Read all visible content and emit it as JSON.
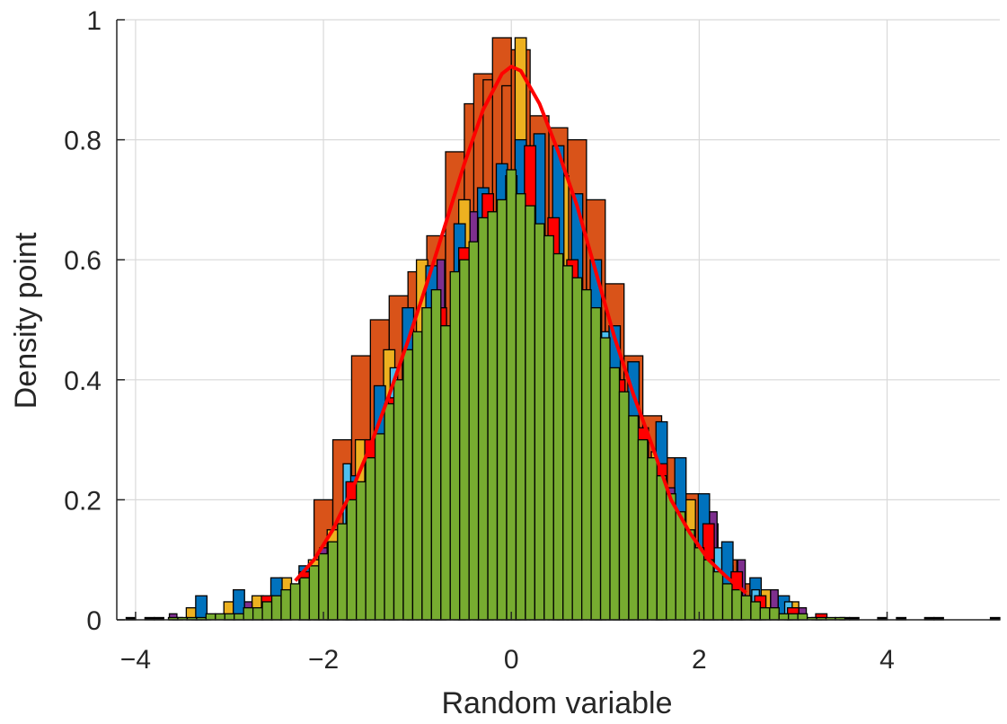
{
  "chart_data": {
    "type": "bar",
    "subtype": "overlaid-histogram-with-pdf",
    "title": "",
    "xlabel": "Random variable",
    "ylabel": "Density point",
    "xlim": [
      -4.2,
      5.2
    ],
    "ylim": [
      0,
      1
    ],
    "xticks": [
      -4,
      -2,
      0,
      2,
      4
    ],
    "xtick_labels": [
      "−4",
      "−2",
      "0",
      "2",
      "4"
    ],
    "yticks": [
      0,
      0.2,
      0.4,
      0.6,
      0.8,
      1
    ],
    "ytick_labels": [
      "0",
      "0.2",
      "0.4",
      "0.6",
      "0.8",
      "1"
    ],
    "grid": true,
    "legend": "none",
    "series": [
      {
        "color": "#D95319",
        "bin_width": 0.2,
        "bins": [
          [
            -2.0,
            0.2
          ],
          [
            -1.8,
            0.3
          ],
          [
            -1.6,
            0.44
          ],
          [
            -1.4,
            0.5
          ],
          [
            -1.2,
            0.54
          ],
          [
            -1.0,
            0.58
          ],
          [
            -0.8,
            0.64
          ],
          [
            -0.6,
            0.78
          ],
          [
            -0.4,
            0.86
          ],
          [
            -0.3,
            0.91
          ],
          [
            -0.2,
            0.9
          ],
          [
            -0.1,
            0.97
          ],
          [
            0.0,
            0.89
          ],
          [
            0.1,
            0.95
          ],
          [
            0.3,
            0.84
          ],
          [
            0.5,
            0.82
          ],
          [
            0.7,
            0.8
          ],
          [
            0.9,
            0.7
          ],
          [
            1.1,
            0.56
          ],
          [
            1.3,
            0.44
          ],
          [
            1.5,
            0.34
          ],
          [
            1.7,
            0.27
          ],
          [
            1.9,
            0.21
          ],
          [
            2.1,
            0.16
          ],
          [
            2.3,
            0.1
          ],
          [
            2.5,
            0.06
          ]
        ]
      },
      {
        "color": "#EDB120",
        "bin_width": 0.12,
        "bins": [
          [
            -3.4,
            0.02
          ],
          [
            -3.0,
            0.03
          ],
          [
            -2.7,
            0.04
          ],
          [
            -2.4,
            0.07
          ],
          [
            -2.1,
            0.1
          ],
          [
            -1.9,
            0.15
          ],
          [
            -1.6,
            0.3
          ],
          [
            -1.3,
            0.45
          ],
          [
            -0.95,
            0.6
          ],
          [
            -0.5,
            0.7
          ],
          [
            0.1,
            0.97
          ],
          [
            0.55,
            0.74
          ],
          [
            0.95,
            0.47
          ],
          [
            1.25,
            0.37
          ],
          [
            1.55,
            0.28
          ],
          [
            1.9,
            0.2
          ],
          [
            2.3,
            0.09
          ],
          [
            2.7,
            0.05
          ],
          [
            3.0,
            0.03
          ]
        ]
      },
      {
        "color": "#0072BD",
        "bin_width": 0.12,
        "bins": [
          [
            -3.3,
            0.04
          ],
          [
            -2.9,
            0.05
          ],
          [
            -2.5,
            0.07
          ],
          [
            -2.2,
            0.09
          ],
          [
            -1.7,
            0.24
          ],
          [
            -1.4,
            0.39
          ],
          [
            -1.1,
            0.52
          ],
          [
            -0.85,
            0.59
          ],
          [
            -0.55,
            0.66
          ],
          [
            -0.3,
            0.72
          ],
          [
            -0.1,
            0.76
          ],
          [
            0.1,
            0.8
          ],
          [
            0.3,
            0.81
          ],
          [
            0.5,
            0.79
          ],
          [
            0.7,
            0.71
          ],
          [
            0.9,
            0.6
          ],
          [
            1.1,
            0.49
          ],
          [
            1.3,
            0.43
          ],
          [
            1.6,
            0.33
          ],
          [
            1.8,
            0.27
          ],
          [
            2.05,
            0.21
          ],
          [
            2.3,
            0.13
          ],
          [
            2.6,
            0.07
          ],
          [
            2.9,
            0.04
          ]
        ]
      },
      {
        "color": "#7E2F8E",
        "bin_width": 0.08,
        "bins": [
          [
            -3.6,
            0.01
          ],
          [
            -2.8,
            0.03
          ],
          [
            -2.0,
            0.12
          ],
          [
            -0.75,
            0.6
          ],
          [
            -0.4,
            0.68
          ],
          [
            1.7,
            0.22
          ],
          [
            2.15,
            0.18
          ],
          [
            2.45,
            0.1
          ],
          [
            2.8,
            0.05
          ],
          [
            3.1,
            0.02
          ]
        ]
      },
      {
        "color": "#4DBEEE",
        "bin_width": 0.08,
        "bins": [
          [
            -1.75,
            0.26
          ],
          [
            -1.25,
            0.42
          ],
          [
            1.0,
            0.48
          ],
          [
            2.2,
            0.12
          ],
          [
            2.6,
            0.05
          ],
          [
            2.95,
            0.03
          ]
        ]
      },
      {
        "color": "#FF0000",
        "bin_width": 0.12,
        "bins": [
          [
            -2.6,
            0.04
          ],
          [
            -2.2,
            0.08
          ],
          [
            -1.9,
            0.13
          ],
          [
            -1.7,
            0.23
          ],
          [
            -1.5,
            0.3
          ],
          [
            -1.25,
            0.37
          ],
          [
            -1.05,
            0.44
          ],
          [
            -0.75,
            0.52
          ],
          [
            -0.5,
            0.62
          ],
          [
            -0.25,
            0.71
          ],
          [
            0.0,
            0.74
          ],
          [
            0.2,
            0.79
          ],
          [
            0.45,
            0.67
          ],
          [
            0.65,
            0.6
          ],
          [
            0.9,
            0.52
          ],
          [
            1.15,
            0.4
          ],
          [
            1.4,
            0.32
          ],
          [
            1.6,
            0.26
          ],
          [
            2.1,
            0.16
          ],
          [
            2.4,
            0.08
          ],
          [
            2.65,
            0.04
          ],
          [
            3.0,
            0.02
          ],
          [
            3.3,
            0.01
          ]
        ]
      },
      {
        "color": "#77AC30",
        "bin_width": 0.1,
        "bins": [
          [
            -3.6,
            0.0
          ],
          [
            -3.5,
            0.0
          ],
          [
            -3.4,
            0.0
          ],
          [
            -3.3,
            0.0
          ],
          [
            -3.2,
            0.01
          ],
          [
            -3.1,
            0.01
          ],
          [
            -3.0,
            0.01
          ],
          [
            -2.9,
            0.01
          ],
          [
            -2.8,
            0.02
          ],
          [
            -2.7,
            0.02
          ],
          [
            -2.6,
            0.03
          ],
          [
            -2.5,
            0.04
          ],
          [
            -2.4,
            0.05
          ],
          [
            -2.3,
            0.06
          ],
          [
            -2.2,
            0.07
          ],
          [
            -2.1,
            0.09
          ],
          [
            -2.0,
            0.11
          ],
          [
            -1.9,
            0.13
          ],
          [
            -1.8,
            0.16
          ],
          [
            -1.7,
            0.2
          ],
          [
            -1.6,
            0.23
          ],
          [
            -1.5,
            0.27
          ],
          [
            -1.4,
            0.31
          ],
          [
            -1.3,
            0.36
          ],
          [
            -1.2,
            0.4
          ],
          [
            -1.1,
            0.45
          ],
          [
            -1.0,
            0.48
          ],
          [
            -0.9,
            0.52
          ],
          [
            -0.8,
            0.55
          ],
          [
            -0.7,
            0.49
          ],
          [
            -0.6,
            0.58
          ],
          [
            -0.5,
            0.6
          ],
          [
            -0.4,
            0.63
          ],
          [
            -0.3,
            0.67
          ],
          [
            -0.2,
            0.68
          ],
          [
            -0.1,
            0.7
          ],
          [
            0.0,
            0.75
          ],
          [
            0.1,
            0.71
          ],
          [
            0.2,
            0.69
          ],
          [
            0.3,
            0.66
          ],
          [
            0.4,
            0.64
          ],
          [
            0.5,
            0.61
          ],
          [
            0.6,
            0.59
          ],
          [
            0.7,
            0.57
          ],
          [
            0.8,
            0.55
          ],
          [
            0.9,
            0.52
          ],
          [
            1.0,
            0.47
          ],
          [
            1.1,
            0.42
          ],
          [
            1.2,
            0.38
          ],
          [
            1.3,
            0.34
          ],
          [
            1.4,
            0.3
          ],
          [
            1.5,
            0.27
          ],
          [
            1.6,
            0.24
          ],
          [
            1.7,
            0.21
          ],
          [
            1.8,
            0.18
          ],
          [
            1.9,
            0.15
          ],
          [
            2.0,
            0.12
          ],
          [
            2.1,
            0.1
          ],
          [
            2.2,
            0.08
          ],
          [
            2.3,
            0.06
          ],
          [
            2.4,
            0.05
          ],
          [
            2.5,
            0.04
          ],
          [
            2.6,
            0.03
          ],
          [
            2.7,
            0.02
          ],
          [
            2.8,
            0.02
          ],
          [
            2.9,
            0.01
          ],
          [
            3.0,
            0.01
          ],
          [
            3.1,
            0.01
          ],
          [
            3.2,
            0.0
          ],
          [
            3.3,
            0.0
          ],
          [
            3.4,
            0.0
          ],
          [
            3.5,
            0.0
          ]
        ]
      }
    ],
    "tail_bins": {
      "color": "#000000",
      "bin_width": 0.1,
      "bins": [
        [
          -4.05,
          0.0
        ],
        [
          -3.85,
          0.0
        ],
        [
          -3.75,
          0.0
        ],
        [
          -3.55,
          0.0
        ],
        [
          -3.35,
          0.0
        ],
        [
          -3.25,
          0.0
        ],
        [
          3.25,
          0.0
        ],
        [
          3.55,
          0.0
        ],
        [
          3.65,
          0.0
        ],
        [
          3.95,
          0.0
        ],
        [
          4.15,
          0.0
        ],
        [
          4.45,
          0.0
        ],
        [
          4.55,
          0.0
        ],
        [
          5.15,
          0.0
        ]
      ]
    },
    "pdf_curve": {
      "color": "#FF0000",
      "x": [
        -2.3,
        -2.1,
        -1.9,
        -1.7,
        -1.5,
        -1.3,
        -1.1,
        -0.9,
        -0.7,
        -0.5,
        -0.3,
        -0.1,
        0.0,
        0.1,
        0.3,
        0.5,
        0.7,
        0.9,
        1.1,
        1.3,
        1.5,
        1.7,
        1.9,
        2.1,
        2.3,
        2.5
      ],
      "y": [
        0.065,
        0.1,
        0.15,
        0.215,
        0.29,
        0.375,
        0.465,
        0.56,
        0.66,
        0.76,
        0.85,
        0.91,
        0.922,
        0.915,
        0.86,
        0.78,
        0.69,
        0.58,
        0.47,
        0.375,
        0.29,
        0.2,
        0.145,
        0.1,
        0.07,
        0.045
      ]
    }
  }
}
